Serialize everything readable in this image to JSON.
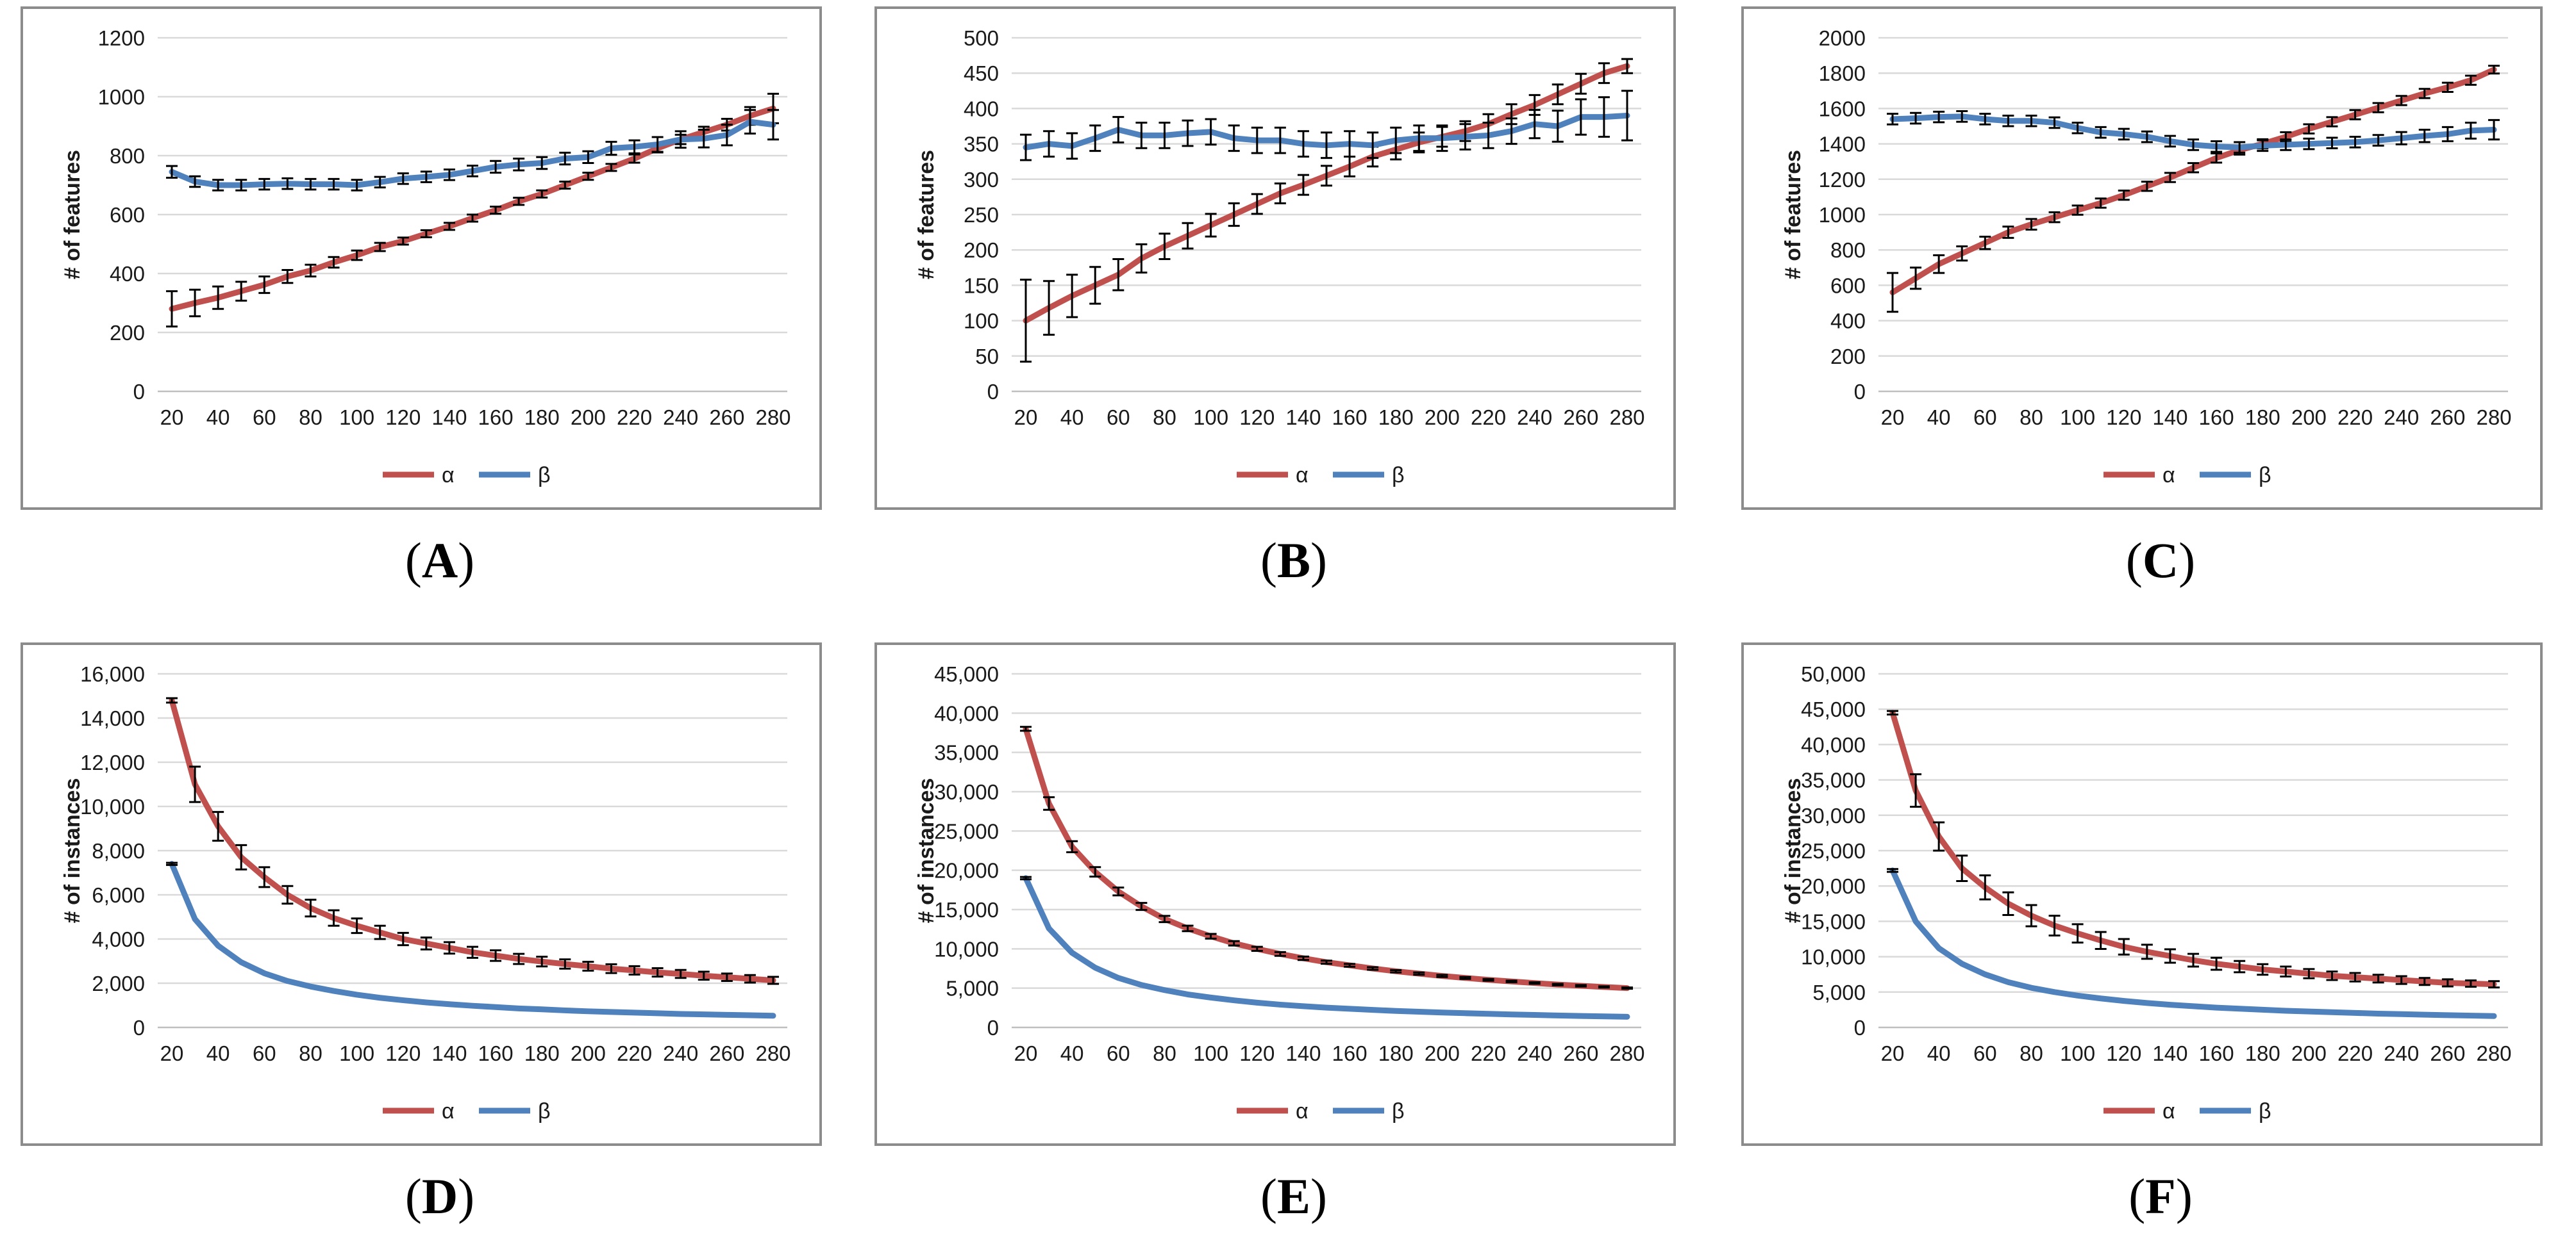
{
  "figure": {
    "series_names": [
      "α",
      "β"
    ],
    "colors": {
      "alpha": "#c0504d",
      "beta": "#4f81bd",
      "grid": "#d9d9d9",
      "axis": "#bfbfbf",
      "errorbar": "#000000",
      "border": "#8c8c8c"
    }
  },
  "chart_data": [
    {
      "id": "A",
      "caption": "A",
      "type": "line",
      "ylabel": "# of features",
      "ylim": [
        0,
        1200
      ],
      "yticks": [
        0,
        200,
        400,
        600,
        800,
        1000,
        1200
      ],
      "ytick_labels": [
        "0",
        "200",
        "400",
        "600",
        "800",
        "1000",
        "1200"
      ],
      "x": [
        20,
        30,
        40,
        50,
        60,
        70,
        80,
        90,
        100,
        110,
        120,
        130,
        140,
        150,
        160,
        170,
        180,
        190,
        200,
        210,
        220,
        230,
        240,
        250,
        260,
        270,
        280
      ],
      "xtick_labels": [
        "20",
        "40",
        "60",
        "80",
        "100",
        "120",
        "140",
        "160",
        "180",
        "200",
        "220",
        "240",
        "260",
        "280"
      ],
      "legend": "bottom-center",
      "series": [
        {
          "name": "α",
          "values": [
            280,
            300,
            318,
            340,
            362,
            390,
            410,
            438,
            462,
            490,
            510,
            535,
            560,
            588,
            615,
            645,
            670,
            700,
            730,
            760,
            790,
            825,
            855,
            880,
            905,
            935,
            960
          ],
          "errors": [
            60,
            45,
            38,
            32,
            28,
            22,
            20,
            18,
            16,
            14,
            12,
            12,
            12,
            12,
            12,
            12,
            12,
            12,
            12,
            12,
            14,
            14,
            16,
            18,
            20,
            30,
            50
          ]
        },
        {
          "name": "β",
          "values": [
            745,
            712,
            700,
            700,
            703,
            705,
            703,
            703,
            700,
            710,
            722,
            728,
            735,
            748,
            762,
            770,
            775,
            790,
            795,
            825,
            830,
            838,
            855,
            858,
            870,
            915,
            905
          ],
          "errors": [
            20,
            18,
            18,
            18,
            18,
            18,
            18,
            18,
            18,
            18,
            18,
            18,
            18,
            18,
            20,
            20,
            20,
            20,
            20,
            22,
            22,
            25,
            28,
            30,
            35,
            40,
            50
          ]
        }
      ]
    },
    {
      "id": "B",
      "caption": "B",
      "type": "line",
      "ylabel": "# of features",
      "ylim": [
        0,
        500
      ],
      "yticks": [
        0,
        50,
        100,
        150,
        200,
        250,
        300,
        350,
        400,
        450,
        500
      ],
      "ytick_labels": [
        "0",
        "50",
        "100",
        "150",
        "200",
        "250",
        "300",
        "350",
        "400",
        "450",
        "500"
      ],
      "x": [
        20,
        30,
        40,
        50,
        60,
        70,
        80,
        90,
        100,
        110,
        120,
        130,
        140,
        150,
        160,
        170,
        180,
        190,
        200,
        210,
        220,
        230,
        240,
        250,
        260,
        270,
        280
      ],
      "xtick_labels": [
        "20",
        "40",
        "60",
        "80",
        "100",
        "120",
        "140",
        "160",
        "180",
        "200",
        "220",
        "240",
        "260",
        "280"
      ],
      "legend": "bottom-center",
      "series": [
        {
          "name": "α",
          "values": [
            100,
            118,
            135,
            150,
            165,
            188,
            205,
            220,
            235,
            250,
            265,
            280,
            292,
            305,
            318,
            332,
            342,
            352,
            360,
            368,
            378,
            392,
            405,
            420,
            435,
            450,
            460
          ],
          "errors": [
            58,
            38,
            30,
            26,
            22,
            20,
            18,
            18,
            16,
            16,
            14,
            14,
            14,
            14,
            14,
            14,
            14,
            14,
            14,
            14,
            14,
            14,
            14,
            14,
            14,
            14,
            10
          ]
        },
        {
          "name": "β",
          "values": [
            345,
            350,
            347,
            358,
            370,
            362,
            362,
            365,
            367,
            358,
            355,
            355,
            350,
            348,
            350,
            348,
            355,
            358,
            358,
            360,
            362,
            368,
            378,
            375,
            388,
            388,
            390
          ],
          "errors": [
            18,
            18,
            18,
            18,
            18,
            18,
            18,
            18,
            18,
            18,
            18,
            18,
            18,
            18,
            18,
            18,
            18,
            18,
            18,
            18,
            18,
            18,
            20,
            22,
            25,
            28,
            35
          ]
        }
      ]
    },
    {
      "id": "C",
      "caption": "C",
      "type": "line",
      "ylabel": "# of features",
      "ylim": [
        0,
        2000
      ],
      "yticks": [
        0,
        200,
        400,
        600,
        800,
        1000,
        1200,
        1400,
        1600,
        1800,
        2000
      ],
      "ytick_labels": [
        "0",
        "200",
        "400",
        "600",
        "800",
        "1000",
        "1200",
        "1400",
        "1600",
        "1800",
        "2000"
      ],
      "x": [
        20,
        30,
        40,
        50,
        60,
        70,
        80,
        90,
        100,
        110,
        120,
        130,
        140,
        150,
        160,
        170,
        180,
        190,
        200,
        210,
        220,
        230,
        240,
        250,
        260,
        270,
        280
      ],
      "xtick_labels": [
        "20",
        "40",
        "60",
        "80",
        "100",
        "120",
        "140",
        "160",
        "180",
        "200",
        "220",
        "240",
        "260",
        "280"
      ],
      "legend": "bottom-center",
      "series": [
        {
          "name": "α",
          "values": [
            560,
            640,
            720,
            780,
            840,
            900,
            945,
            985,
            1025,
            1065,
            1110,
            1160,
            1210,
            1265,
            1320,
            1365,
            1400,
            1440,
            1485,
            1525,
            1565,
            1605,
            1645,
            1685,
            1720,
            1760,
            1820
          ],
          "errors": [
            110,
            60,
            50,
            40,
            35,
            32,
            30,
            28,
            26,
            26,
            26,
            26,
            26,
            26,
            26,
            26,
            26,
            26,
            26,
            26,
            26,
            26,
            26,
            26,
            26,
            26,
            22
          ]
        },
        {
          "name": "β",
          "values": [
            1540,
            1545,
            1552,
            1555,
            1540,
            1530,
            1530,
            1520,
            1490,
            1465,
            1455,
            1440,
            1415,
            1395,
            1385,
            1380,
            1390,
            1395,
            1400,
            1405,
            1410,
            1420,
            1432,
            1445,
            1455,
            1475,
            1480
          ],
          "errors": [
            30,
            30,
            30,
            30,
            30,
            30,
            30,
            30,
            30,
            30,
            30,
            30,
            30,
            30,
            30,
            30,
            30,
            30,
            30,
            30,
            30,
            30,
            35,
            35,
            40,
            45,
            55
          ]
        }
      ]
    },
    {
      "id": "D",
      "caption": "D",
      "type": "line",
      "ylabel": "# of instances",
      "ylim": [
        0,
        16000
      ],
      "yticks": [
        0,
        2000,
        4000,
        6000,
        8000,
        10000,
        12000,
        14000,
        16000
      ],
      "ytick_labels": [
        "0",
        "2,000",
        "4,000",
        "6,000",
        "8,000",
        "10,000",
        "12,000",
        "14,000",
        "16,000"
      ],
      "x": [
        20,
        30,
        40,
        50,
        60,
        70,
        80,
        90,
        100,
        110,
        120,
        130,
        140,
        150,
        160,
        170,
        180,
        190,
        200,
        210,
        220,
        230,
        240,
        250,
        260,
        270,
        280
      ],
      "xtick_labels": [
        "20",
        "40",
        "60",
        "80",
        "100",
        "120",
        "140",
        "160",
        "180",
        "200",
        "220",
        "240",
        "260",
        "280"
      ],
      "legend": "bottom-center",
      "series": [
        {
          "name": "α",
          "values": [
            14800,
            11000,
            9100,
            7700,
            6800,
            6000,
            5400,
            4950,
            4600,
            4300,
            4000,
            3800,
            3600,
            3400,
            3250,
            3100,
            2980,
            2870,
            2770,
            2660,
            2580,
            2490,
            2420,
            2340,
            2270,
            2200,
            2130
          ],
          "errors": [
            100,
            800,
            650,
            550,
            450,
            400,
            380,
            350,
            330,
            300,
            280,
            270,
            260,
            250,
            240,
            230,
            220,
            210,
            200,
            200,
            190,
            190,
            180,
            180,
            170,
            170,
            160
          ]
        },
        {
          "name": "β",
          "values": [
            7400,
            4900,
            3700,
            2950,
            2450,
            2100,
            1850,
            1650,
            1480,
            1340,
            1230,
            1130,
            1050,
            980,
            920,
            860,
            820,
            770,
            730,
            700,
            670,
            640,
            610,
            590,
            570,
            550,
            530
          ],
          "errors": [
            50,
            0,
            0,
            0,
            0,
            0,
            0,
            0,
            0,
            0,
            0,
            0,
            0,
            0,
            0,
            0,
            0,
            0,
            0,
            0,
            0,
            0,
            0,
            0,
            0,
            0,
            0
          ]
        }
      ]
    },
    {
      "id": "E",
      "caption": "E",
      "type": "line",
      "ylabel": "# of instances",
      "ylim": [
        0,
        45000
      ],
      "yticks": [
        0,
        5000,
        10000,
        15000,
        20000,
        25000,
        30000,
        35000,
        40000,
        45000
      ],
      "ytick_labels": [
        "0",
        "5,000",
        "10,000",
        "15,000",
        "20,000",
        "25,000",
        "30,000",
        "35,000",
        "40,000",
        "45,000"
      ],
      "x": [
        20,
        30,
        40,
        50,
        60,
        70,
        80,
        90,
        100,
        110,
        120,
        130,
        140,
        150,
        160,
        170,
        180,
        190,
        200,
        210,
        220,
        230,
        240,
        250,
        260,
        270,
        280
      ],
      "xtick_labels": [
        "20",
        "40",
        "60",
        "80",
        "100",
        "120",
        "140",
        "160",
        "180",
        "200",
        "220",
        "240",
        "260",
        "280"
      ],
      "legend": "bottom-center",
      "series": [
        {
          "name": "α",
          "values": [
            38000,
            28500,
            23000,
            19800,
            17300,
            15400,
            13800,
            12600,
            11600,
            10700,
            10000,
            9350,
            8800,
            8300,
            7900,
            7500,
            7150,
            6850,
            6550,
            6300,
            6050,
            5850,
            5650,
            5450,
            5300,
            5150,
            5000
          ],
          "errors": [
            250,
            800,
            700,
            600,
            500,
            450,
            400,
            350,
            300,
            280,
            260,
            240,
            220,
            200,
            180,
            160,
            150,
            140,
            130,
            120,
            110,
            100,
            100,
            90,
            90,
            80,
            80
          ]
        },
        {
          "name": "β",
          "values": [
            19000,
            12600,
            9500,
            7600,
            6300,
            5400,
            4750,
            4200,
            3800,
            3450,
            3150,
            2900,
            2700,
            2520,
            2370,
            2230,
            2100,
            2000,
            1900,
            1810,
            1730,
            1650,
            1590,
            1520,
            1460,
            1410,
            1360
          ],
          "errors": [
            150,
            0,
            0,
            0,
            0,
            0,
            0,
            0,
            0,
            0,
            0,
            0,
            0,
            0,
            0,
            0,
            0,
            0,
            0,
            0,
            0,
            0,
            0,
            0,
            0,
            0,
            0
          ]
        }
      ]
    },
    {
      "id": "F",
      "caption": "F",
      "type": "line",
      "ylabel": "# of instances",
      "ylim": [
        0,
        50000
      ],
      "yticks": [
        0,
        5000,
        10000,
        15000,
        20000,
        25000,
        30000,
        35000,
        40000,
        45000,
        50000
      ],
      "ytick_labels": [
        "0",
        "5,000",
        "10,000",
        "15,000",
        "20,000",
        "25,000",
        "30,000",
        "35,000",
        "40,000",
        "45,000",
        "50,000"
      ],
      "x": [
        20,
        30,
        40,
        50,
        60,
        70,
        80,
        90,
        100,
        110,
        120,
        130,
        140,
        150,
        160,
        170,
        180,
        190,
        200,
        210,
        220,
        230,
        240,
        250,
        260,
        270,
        280
      ],
      "xtick_labels": [
        "20",
        "40",
        "60",
        "80",
        "100",
        "120",
        "140",
        "160",
        "180",
        "200",
        "220",
        "240",
        "260",
        "280"
      ],
      "legend": "bottom-center",
      "series": [
        {
          "name": "α",
          "values": [
            44500,
            33500,
            27000,
            22500,
            19800,
            17500,
            15800,
            14400,
            13300,
            12300,
            11400,
            10700,
            10100,
            9500,
            9000,
            8600,
            8200,
            7900,
            7600,
            7300,
            7100,
            6900,
            6700,
            6500,
            6300,
            6200,
            6100
          ],
          "errors": [
            250,
            2300,
            2000,
            1800,
            1700,
            1600,
            1500,
            1400,
            1300,
            1200,
            1100,
            1000,
            950,
            900,
            850,
            800,
            750,
            700,
            650,
            600,
            600,
            550,
            550,
            500,
            500,
            450,
            450
          ]
        },
        {
          "name": "β",
          "values": [
            22200,
            15000,
            11200,
            9000,
            7500,
            6400,
            5600,
            5000,
            4500,
            4100,
            3750,
            3450,
            3200,
            3000,
            2800,
            2650,
            2500,
            2350,
            2250,
            2150,
            2050,
            1950,
            1880,
            1800,
            1730,
            1670,
            1610
          ],
          "errors": [
            200,
            0,
            0,
            0,
            0,
            0,
            0,
            0,
            0,
            0,
            0,
            0,
            0,
            0,
            0,
            0,
            0,
            0,
            0,
            0,
            0,
            0,
            0,
            0,
            0,
            0,
            0
          ]
        }
      ]
    }
  ]
}
